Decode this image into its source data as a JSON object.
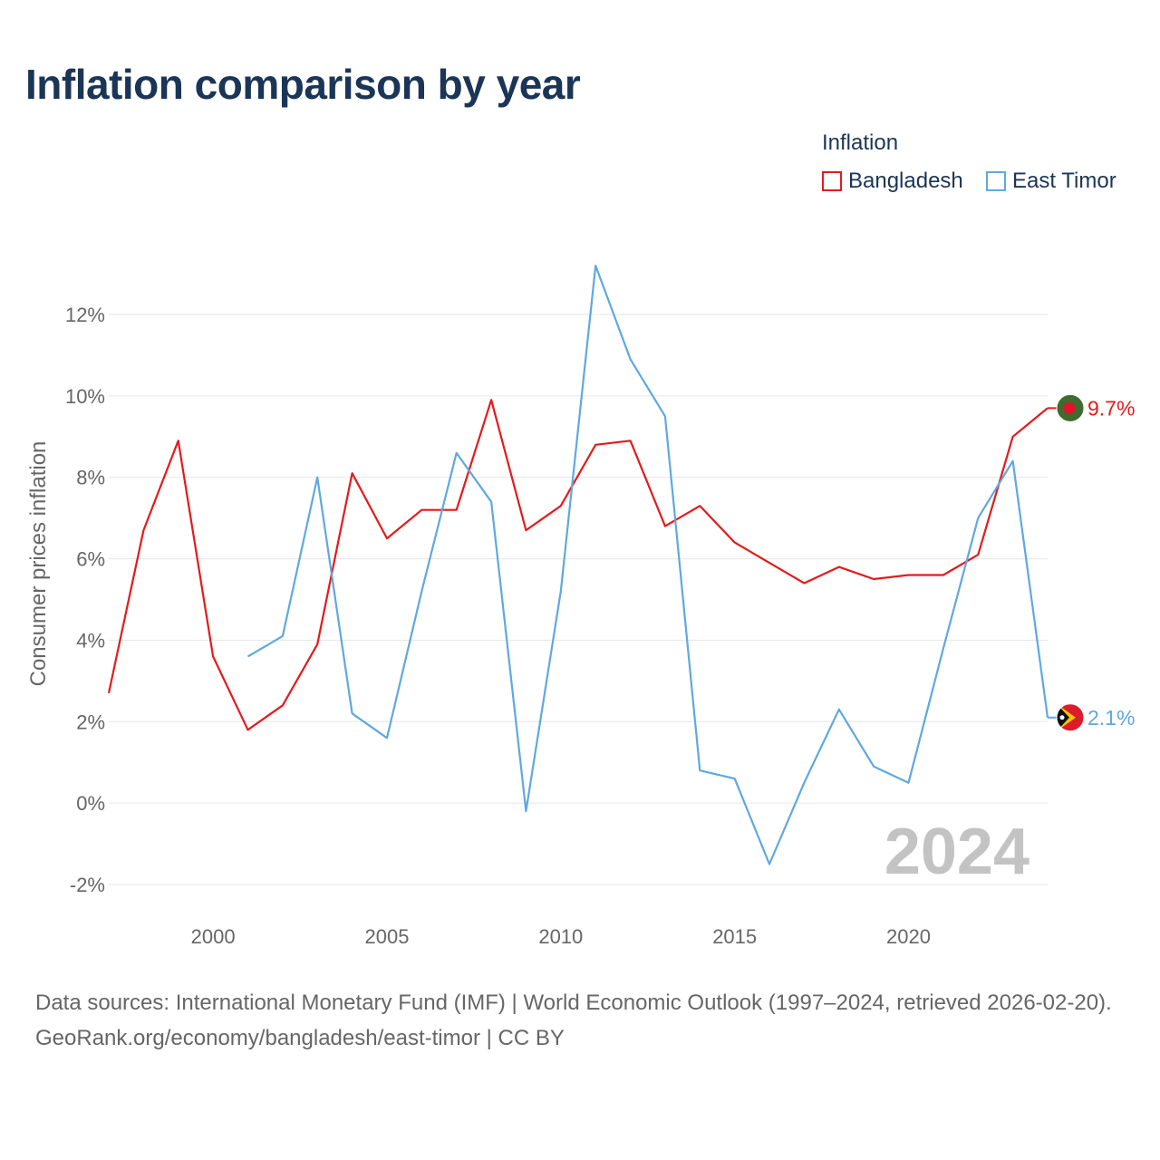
{
  "title": "Inflation comparison by year",
  "legend": {
    "title": "Inflation",
    "items": [
      {
        "label": "Bangladesh",
        "color": "#e41a1c"
      },
      {
        "label": "East Timor",
        "color": "#5fa8e0"
      }
    ]
  },
  "footer": {
    "sources": "Data sources: International Monetary Fund (IMF) | World Economic Outlook (1997–2024, retrieved 2026-02-20).",
    "credit": "GeoRank.org/economy/bangladesh/east-timor | CC BY"
  },
  "chart_data": {
    "type": "line",
    "title": "Inflation comparison by year",
    "ylabel": "Consumer prices inflation",
    "xlabel": "",
    "xlim": [
      1997,
      2024
    ],
    "ylim": [
      -2.6,
      13.2
    ],
    "xticks": [
      2000,
      2005,
      2010,
      2015,
      2020
    ],
    "yticks": [
      -2,
      0,
      2,
      4,
      6,
      8,
      10,
      12
    ],
    "ytick_labels": [
      "-2%",
      "0%",
      "2%",
      "4%",
      "6%",
      "8%",
      "10%",
      "12%"
    ],
    "grid": true,
    "legend_position": "top-right",
    "current_year": "2024",
    "series": [
      {
        "name": "Bangladesh",
        "color": "#e41a1c",
        "end_label": "9.7%",
        "flag": "bangladesh-flag",
        "x": [
          1997,
          1998,
          1999,
          2000,
          2001,
          2002,
          2003,
          2004,
          2005,
          2006,
          2007,
          2008,
          2009,
          2010,
          2011,
          2012,
          2013,
          2014,
          2015,
          2016,
          2017,
          2018,
          2019,
          2020,
          2021,
          2022,
          2023,
          2024
        ],
        "values": [
          2.7,
          6.7,
          8.9,
          3.6,
          1.8,
          2.4,
          3.9,
          8.1,
          6.5,
          7.2,
          7.2,
          9.9,
          6.7,
          7.3,
          8.8,
          8.9,
          6.8,
          7.3,
          6.4,
          5.9,
          5.4,
          5.8,
          5.5,
          5.6,
          5.6,
          6.1,
          9.0,
          9.7
        ]
      },
      {
        "name": "East Timor",
        "color": "#5fa8e0",
        "end_label": "2.1%",
        "flag": "east-timor-flag",
        "x": [
          2001,
          2002,
          2003,
          2004,
          2005,
          2006,
          2007,
          2008,
          2009,
          2010,
          2011,
          2012,
          2013,
          2014,
          2015,
          2016,
          2017,
          2018,
          2019,
          2020,
          2021,
          2022,
          2023,
          2024
        ],
        "values": [
          3.6,
          4.1,
          8.0,
          2.2,
          1.6,
          5.2,
          8.6,
          7.4,
          -0.2,
          5.2,
          13.2,
          10.9,
          9.5,
          0.8,
          0.6,
          -1.5,
          0.5,
          2.3,
          0.9,
          0.5,
          3.8,
          7.0,
          8.4,
          2.1
        ]
      }
    ]
  }
}
